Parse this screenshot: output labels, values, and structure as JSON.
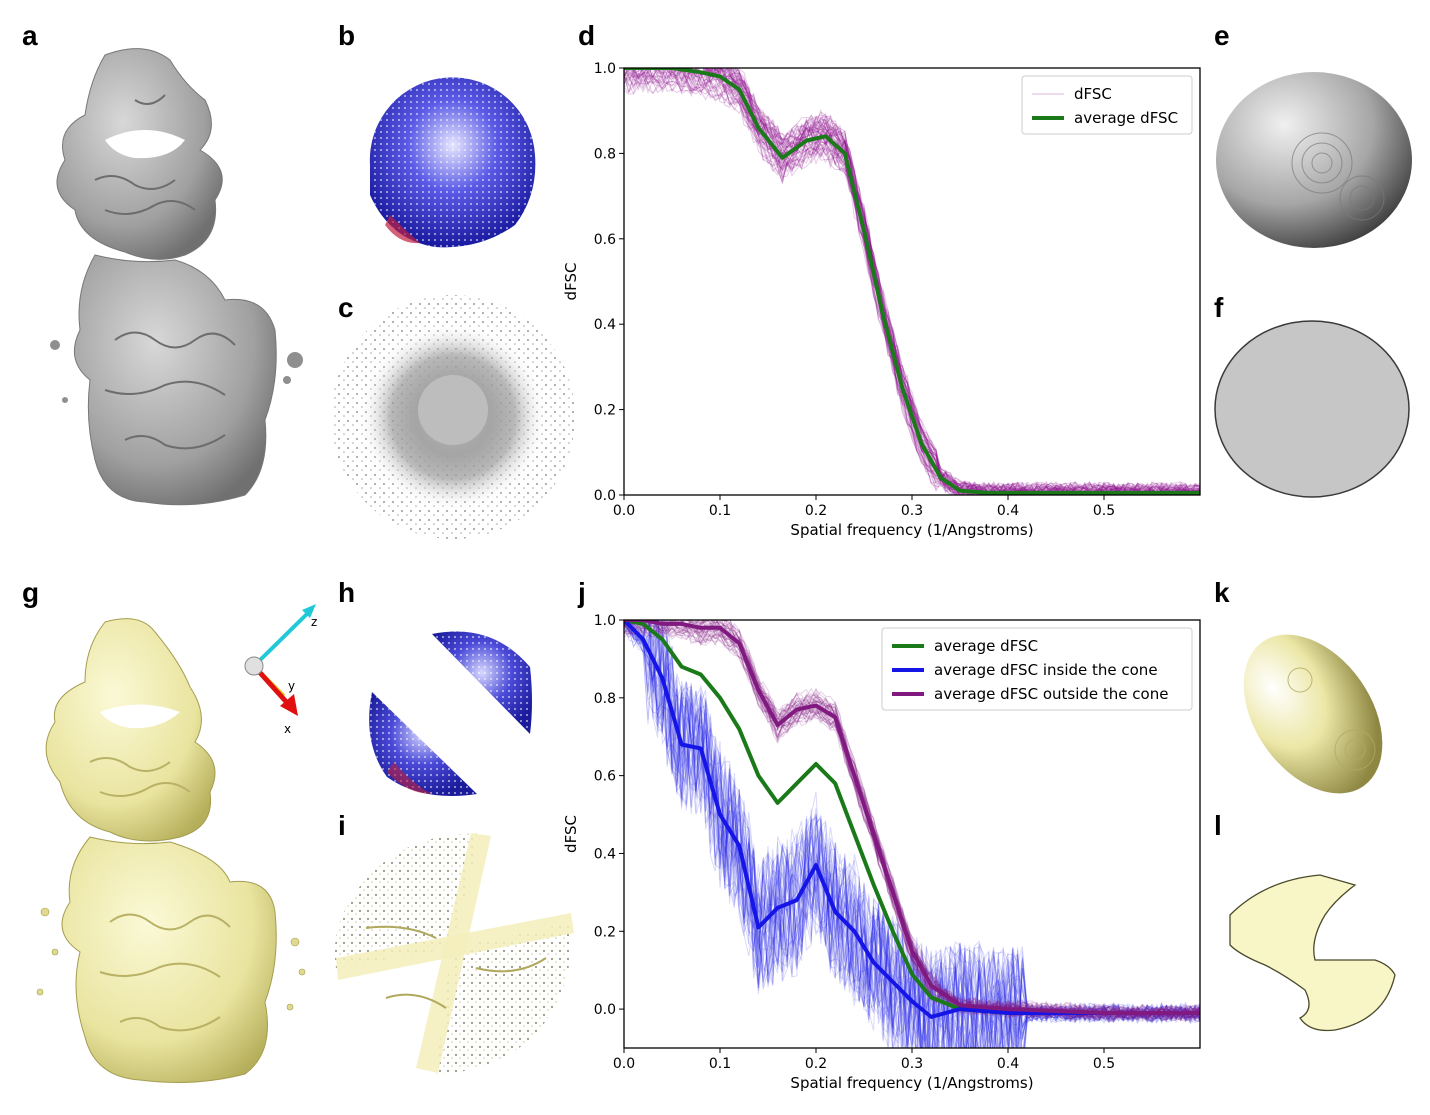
{
  "panels": {
    "a": "a",
    "b": "b",
    "c": "c",
    "d": "d",
    "e": "e",
    "f": "f",
    "g": "g",
    "h": "h",
    "i": "i",
    "j": "j",
    "k": "k",
    "l": "l"
  },
  "axes_triad": {
    "z": "z",
    "y": "y",
    "x": "x"
  },
  "colors": {
    "grey_map": "#a9a9a9",
    "yellow_map": "#f2efb2",
    "dfsc_individual": "#8b0f8b",
    "average_dfsc": "#1a7a1a",
    "inside_cone": "#1515e6",
    "outside_cone": "#801a80"
  },
  "chart_data": [
    {
      "id": "d",
      "type": "line",
      "xlabel": "Spatial frequency (1/Angstroms)",
      "ylabel": "dFSC",
      "xlim": [
        0.0,
        0.6
      ],
      "ylim": [
        0.0,
        1.0
      ],
      "xticks": [
        "0.0",
        "0.1",
        "0.2",
        "0.3",
        "0.4",
        "0.5"
      ],
      "yticks": [
        "0.0",
        "0.2",
        "0.4",
        "0.6",
        "0.8",
        "1.0"
      ],
      "legend_position": "top-right",
      "series": [
        {
          "name": "dFSC",
          "color": "#8b0f8b",
          "style": "band",
          "x": [
            0.0,
            0.05,
            0.08,
            0.1,
            0.12,
            0.14,
            0.165,
            0.19,
            0.21,
            0.23,
            0.25,
            0.27,
            0.29,
            0.31,
            0.33,
            0.35,
            0.38,
            0.42,
            0.5,
            0.6
          ],
          "values": [
            1.0,
            1.0,
            0.99,
            0.98,
            0.95,
            0.86,
            0.79,
            0.83,
            0.84,
            0.8,
            0.62,
            0.42,
            0.25,
            0.12,
            0.04,
            0.01,
            0.005,
            0.005,
            0.005,
            0.005
          ]
        },
        {
          "name": "average dFSC",
          "color": "#1a7a1a",
          "style": "line",
          "x": [
            0.0,
            0.05,
            0.08,
            0.1,
            0.12,
            0.14,
            0.165,
            0.19,
            0.21,
            0.23,
            0.25,
            0.27,
            0.29,
            0.31,
            0.33,
            0.35,
            0.38,
            0.42,
            0.5,
            0.6
          ],
          "values": [
            1.0,
            1.0,
            0.99,
            0.98,
            0.95,
            0.86,
            0.79,
            0.83,
            0.84,
            0.8,
            0.62,
            0.42,
            0.25,
            0.12,
            0.04,
            0.01,
            0.005,
            0.005,
            0.005,
            0.005
          ]
        }
      ]
    },
    {
      "id": "j",
      "type": "line",
      "xlabel": "Spatial frequency (1/Angstroms)",
      "ylabel": "dFSC",
      "xlim": [
        0.0,
        0.6
      ],
      "ylim": [
        -0.1,
        1.0
      ],
      "xticks": [
        "0.0",
        "0.1",
        "0.2",
        "0.3",
        "0.4",
        "0.5"
      ],
      "yticks": [
        "0.0",
        "0.2",
        "0.4",
        "0.6",
        "0.8",
        "1.0"
      ],
      "legend_position": "top-right",
      "series": [
        {
          "name": "average dFSC",
          "color": "#1a7a1a",
          "style": "line",
          "x": [
            0.0,
            0.02,
            0.04,
            0.06,
            0.08,
            0.1,
            0.12,
            0.14,
            0.16,
            0.18,
            0.2,
            0.22,
            0.24,
            0.26,
            0.28,
            0.3,
            0.32,
            0.35,
            0.4,
            0.5,
            0.6
          ],
          "values": [
            1.0,
            0.99,
            0.95,
            0.88,
            0.86,
            0.8,
            0.72,
            0.6,
            0.53,
            0.58,
            0.63,
            0.58,
            0.45,
            0.32,
            0.2,
            0.09,
            0.03,
            0.0,
            -0.01,
            -0.01,
            -0.01
          ]
        },
        {
          "name": "average dFSC inside the cone",
          "color": "#1515e6",
          "style": "line",
          "x": [
            0.0,
            0.02,
            0.04,
            0.06,
            0.08,
            0.1,
            0.12,
            0.14,
            0.16,
            0.18,
            0.2,
            0.22,
            0.24,
            0.26,
            0.28,
            0.3,
            0.32,
            0.35,
            0.4,
            0.5,
            0.6
          ],
          "values": [
            1.0,
            0.95,
            0.85,
            0.68,
            0.67,
            0.5,
            0.42,
            0.21,
            0.26,
            0.28,
            0.37,
            0.25,
            0.2,
            0.12,
            0.07,
            0.02,
            -0.02,
            0.0,
            -0.01,
            -0.01,
            -0.01
          ]
        },
        {
          "name": "average dFSC outside the cone",
          "color": "#801a80",
          "style": "line",
          "x": [
            0.0,
            0.02,
            0.04,
            0.06,
            0.08,
            0.1,
            0.12,
            0.14,
            0.16,
            0.18,
            0.2,
            0.22,
            0.24,
            0.26,
            0.28,
            0.3,
            0.32,
            0.35,
            0.4,
            0.5,
            0.6
          ],
          "values": [
            1.0,
            1.0,
            0.99,
            0.99,
            0.98,
            0.98,
            0.94,
            0.82,
            0.73,
            0.77,
            0.78,
            0.75,
            0.6,
            0.45,
            0.3,
            0.15,
            0.06,
            0.01,
            0.0,
            -0.01,
            -0.01
          ]
        }
      ]
    }
  ]
}
